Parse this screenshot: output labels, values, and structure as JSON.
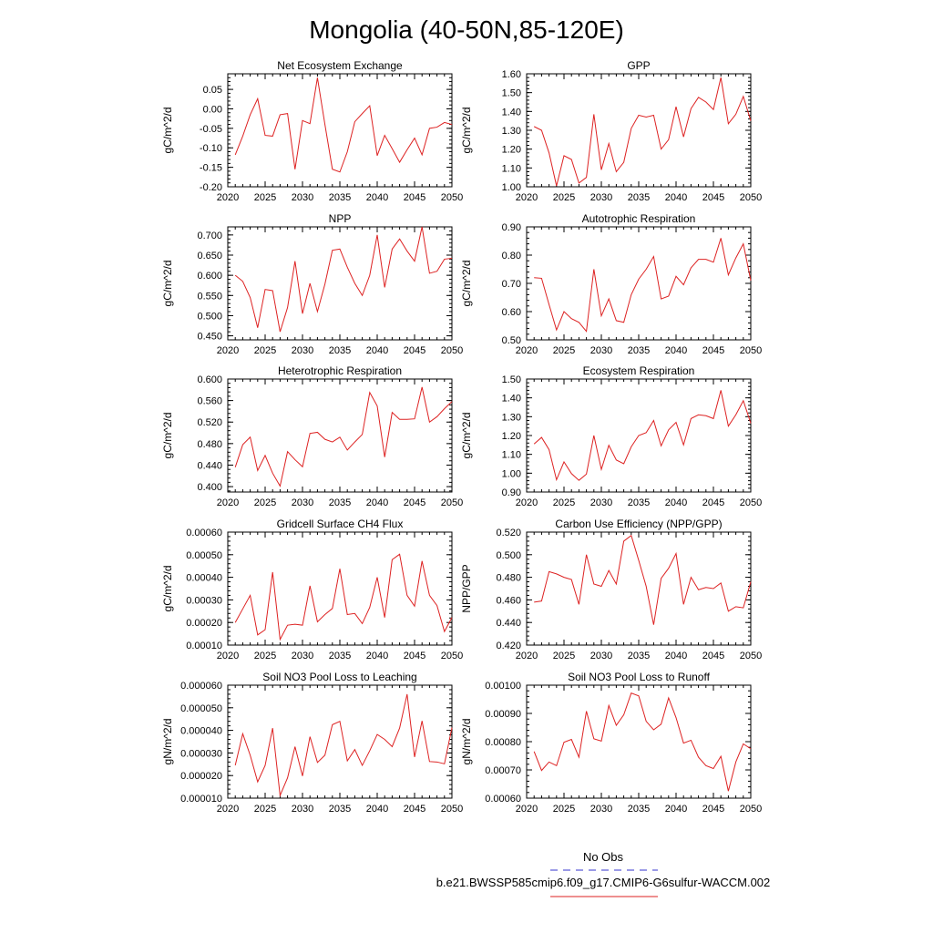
{
  "title": "Mongolia (40-50N,85-120E)",
  "legend": {
    "entries": [
      {
        "label": "No Obs",
        "color": "#3333cc",
        "style": "dashed"
      },
      {
        "label": "b.e21.BWSSP585cmip6.f09_g17.CMIP6-G6sulfur-WACCM.002",
        "color": "#dd2222",
        "style": "solid"
      }
    ]
  },
  "chart_data": [
    {
      "type": "line",
      "title": "Net Ecosystem Exchange",
      "ylabel": "gC/m^2/d",
      "xlim": [
        2020,
        2050
      ],
      "ylim": [
        -0.2,
        0.09
      ],
      "xticks": [
        "2020",
        "2025",
        "2030",
        "2035",
        "2040",
        "2045",
        "2050"
      ],
      "yticks": [
        "-0.20",
        "-0.15",
        "-0.10",
        "-0.05",
        "0.00",
        "0.05"
      ],
      "x": [
        2021,
        2022,
        2023,
        2024,
        2025,
        2026,
        2027,
        2028,
        2029,
        2030,
        2031,
        2032,
        2033,
        2034,
        2035,
        2036,
        2037,
        2038,
        2039,
        2040,
        2041,
        2042,
        2043,
        2044,
        2045,
        2046,
        2047,
        2048,
        2049,
        2050
      ],
      "series": [
        {
          "values": [
            -0.118,
            -0.07,
            -0.015,
            0.026,
            -0.068,
            -0.07,
            -0.015,
            -0.012,
            -0.155,
            -0.03,
            -0.038,
            0.08,
            -0.04,
            -0.155,
            -0.162,
            -0.11,
            -0.033,
            -0.012,
            0.008,
            -0.12,
            -0.068,
            -0.102,
            -0.137,
            -0.105,
            -0.075,
            -0.118,
            -0.05,
            -0.047,
            -0.035,
            -0.04
          ],
          "color": "#dd2222"
        }
      ]
    },
    {
      "type": "line",
      "title": "GPP",
      "ylabel": "gC/m^2/d",
      "xlim": [
        2020,
        2050
      ],
      "ylim": [
        1.0,
        1.6
      ],
      "xticks": [
        "2020",
        "2025",
        "2030",
        "2035",
        "2040",
        "2045",
        "2050"
      ],
      "yticks": [
        "1.00",
        "1.10",
        "1.20",
        "1.30",
        "1.40",
        "1.50",
        "1.60"
      ],
      "x": [
        2021,
        2022,
        2023,
        2024,
        2025,
        2026,
        2027,
        2028,
        2029,
        2030,
        2031,
        2032,
        2033,
        2034,
        2035,
        2036,
        2037,
        2038,
        2039,
        2040,
        2041,
        2042,
        2043,
        2044,
        2045,
        2046,
        2047,
        2048,
        2049,
        2050
      ],
      "series": [
        {
          "values": [
            1.32,
            1.3,
            1.18,
            1.005,
            1.165,
            1.145,
            1.02,
            1.05,
            1.385,
            1.09,
            1.23,
            1.08,
            1.13,
            1.31,
            1.38,
            1.37,
            1.38,
            1.2,
            1.25,
            1.425,
            1.265,
            1.415,
            1.475,
            1.45,
            1.41,
            1.58,
            1.335,
            1.385,
            1.48,
            1.35
          ],
          "color": "#dd2222"
        }
      ]
    },
    {
      "type": "line",
      "title": "NPP",
      "ylabel": "gC/m^2/d",
      "xlim": [
        2020,
        2050
      ],
      "ylim": [
        0.44,
        0.72
      ],
      "xticks": [
        "2020",
        "2025",
        "2030",
        "2035",
        "2040",
        "2045",
        "2050"
      ],
      "yticks": [
        "0.450",
        "0.500",
        "0.550",
        "0.600",
        "0.650",
        "0.700"
      ],
      "x": [
        2021,
        2022,
        2023,
        2024,
        2025,
        2026,
        2027,
        2028,
        2029,
        2030,
        2031,
        2032,
        2033,
        2034,
        2035,
        2036,
        2037,
        2038,
        2039,
        2040,
        2041,
        2042,
        2043,
        2044,
        2045,
        2046,
        2047,
        2048,
        2049,
        2050
      ],
      "series": [
        {
          "values": [
            0.6,
            0.585,
            0.545,
            0.47,
            0.565,
            0.562,
            0.46,
            0.52,
            0.635,
            0.505,
            0.58,
            0.51,
            0.578,
            0.662,
            0.665,
            0.62,
            0.58,
            0.55,
            0.6,
            0.7,
            0.57,
            0.665,
            0.69,
            0.66,
            0.635,
            0.72,
            0.605,
            0.61,
            0.64,
            0.642
          ],
          "color": "#dd2222"
        }
      ]
    },
    {
      "type": "line",
      "title": "Autotrophic Respiration",
      "ylabel": "gC/m^2/d",
      "xlim": [
        2020,
        2050
      ],
      "ylim": [
        0.5,
        0.9
      ],
      "xticks": [
        "2020",
        "2025",
        "2030",
        "2035",
        "2040",
        "2045",
        "2050"
      ],
      "yticks": [
        "0.50",
        "0.60",
        "0.70",
        "0.80",
        "0.90"
      ],
      "x": [
        2021,
        2022,
        2023,
        2024,
        2025,
        2026,
        2027,
        2028,
        2029,
        2030,
        2031,
        2032,
        2033,
        2034,
        2035,
        2036,
        2037,
        2038,
        2039,
        2040,
        2041,
        2042,
        2043,
        2044,
        2045,
        2046,
        2047,
        2048,
        2049,
        2050
      ],
      "series": [
        {
          "values": [
            0.72,
            0.718,
            0.625,
            0.535,
            0.6,
            0.575,
            0.562,
            0.53,
            0.75,
            0.585,
            0.645,
            0.568,
            0.562,
            0.66,
            0.715,
            0.75,
            0.795,
            0.645,
            0.655,
            0.725,
            0.695,
            0.755,
            0.785,
            0.785,
            0.775,
            0.86,
            0.73,
            0.79,
            0.84,
            0.71
          ],
          "color": "#dd2222"
        }
      ]
    },
    {
      "type": "line",
      "title": "Heterotrophic Respiration",
      "ylabel": "gC/m^2/d",
      "xlim": [
        2020,
        2050
      ],
      "ylim": [
        0.39,
        0.6
      ],
      "xticks": [
        "2020",
        "2025",
        "2030",
        "2035",
        "2040",
        "2045",
        "2050"
      ],
      "yticks": [
        "0.400",
        "0.440",
        "0.480",
        "0.520",
        "0.560",
        "0.600"
      ],
      "x": [
        2021,
        2022,
        2023,
        2024,
        2025,
        2026,
        2027,
        2028,
        2029,
        2030,
        2031,
        2032,
        2033,
        2034,
        2035,
        2036,
        2037,
        2038,
        2039,
        2040,
        2041,
        2042,
        2043,
        2044,
        2045,
        2046,
        2047,
        2048,
        2049,
        2050
      ],
      "series": [
        {
          "values": [
            0.436,
            0.478,
            0.492,
            0.43,
            0.458,
            0.425,
            0.401,
            0.465,
            0.45,
            0.437,
            0.499,
            0.501,
            0.488,
            0.483,
            0.492,
            0.468,
            0.483,
            0.497,
            0.575,
            0.55,
            0.455,
            0.538,
            0.525,
            0.525,
            0.526,
            0.585,
            0.52,
            0.53,
            0.545,
            0.558
          ],
          "color": "#dd2222"
        }
      ]
    },
    {
      "type": "line",
      "title": "Ecosystem Respiration",
      "ylabel": "gC/m^2/d",
      "xlim": [
        2020,
        2050
      ],
      "ylim": [
        0.9,
        1.5
      ],
      "xticks": [
        "2020",
        "2025",
        "2030",
        "2035",
        "2040",
        "2045",
        "2050"
      ],
      "yticks": [
        "0.90",
        "1.00",
        "1.10",
        "1.20",
        "1.30",
        "1.40",
        "1.50"
      ],
      "x": [
        2021,
        2022,
        2023,
        2024,
        2025,
        2026,
        2027,
        2028,
        2029,
        2030,
        2031,
        2032,
        2033,
        2034,
        2035,
        2036,
        2037,
        2038,
        2039,
        2040,
        2041,
        2042,
        2043,
        2044,
        2045,
        2046,
        2047,
        2048,
        2049,
        2050
      ],
      "series": [
        {
          "values": [
            1.155,
            1.19,
            1.125,
            0.965,
            1.06,
            0.998,
            0.962,
            0.995,
            1.2,
            1.02,
            1.148,
            1.07,
            1.05,
            1.14,
            1.2,
            1.215,
            1.28,
            1.145,
            1.23,
            1.27,
            1.15,
            1.29,
            1.31,
            1.305,
            1.29,
            1.44,
            1.25,
            1.31,
            1.385,
            1.265
          ],
          "color": "#dd2222"
        }
      ]
    },
    {
      "type": "line",
      "title": "Gridcell Surface CH4 Flux",
      "ylabel": "gC/m^2/d",
      "xlim": [
        2020,
        2050
      ],
      "ylim": [
        0.0001,
        0.0006
      ],
      "xticks": [
        "2020",
        "2025",
        "2030",
        "2035",
        "2040",
        "2045",
        "2050"
      ],
      "yticks": [
        "0.00010",
        "0.00020",
        "0.00030",
        "0.00040",
        "0.00050",
        "0.00060"
      ],
      "x": [
        2021,
        2022,
        2023,
        2024,
        2025,
        2026,
        2027,
        2028,
        2029,
        2030,
        2031,
        2032,
        2033,
        2034,
        2035,
        2036,
        2037,
        2038,
        2039,
        2040,
        2041,
        2042,
        2043,
        2044,
        2045,
        2046,
        2047,
        2048,
        2049,
        2050
      ],
      "series": [
        {
          "values": [
            0.0002,
            0.00026,
            0.00032,
            0.000145,
            0.000168,
            0.000423,
            0.000125,
            0.000188,
            0.000192,
            0.000188,
            0.000362,
            0.000203,
            0.000235,
            0.000262,
            0.000438,
            0.000235,
            0.00024,
            0.000195,
            0.000267,
            0.0004,
            0.000222,
            0.000478,
            0.000502,
            0.00032,
            0.000272,
            0.000472,
            0.00032,
            0.000275,
            0.00016,
            0.000222
          ],
          "color": "#dd2222"
        }
      ]
    },
    {
      "type": "line",
      "title": "Carbon Use Efficiency (NPP/GPP)",
      "ylabel": "NPP/GPP",
      "xlim": [
        2020,
        2050
      ],
      "ylim": [
        0.42,
        0.52
      ],
      "xticks": [
        "2020",
        "2025",
        "2030",
        "2035",
        "2040",
        "2045",
        "2050"
      ],
      "yticks": [
        "0.420",
        "0.440",
        "0.460",
        "0.480",
        "0.500",
        "0.520"
      ],
      "x": [
        2021,
        2022,
        2023,
        2024,
        2025,
        2026,
        2027,
        2028,
        2029,
        2030,
        2031,
        2032,
        2033,
        2034,
        2035,
        2036,
        2037,
        2038,
        2039,
        2040,
        2041,
        2042,
        2043,
        2044,
        2045,
        2046,
        2047,
        2048,
        2049,
        2050
      ],
      "series": [
        {
          "values": [
            0.458,
            0.459,
            0.485,
            0.483,
            0.48,
            0.478,
            0.456,
            0.5,
            0.474,
            0.472,
            0.486,
            0.474,
            0.512,
            0.517,
            0.495,
            0.472,
            0.438,
            0.479,
            0.488,
            0.501,
            0.456,
            0.48,
            0.469,
            0.471,
            0.47,
            0.475,
            0.45,
            0.454,
            0.453,
            0.476
          ],
          "color": "#dd2222"
        }
      ]
    },
    {
      "type": "line",
      "title": "Soil NO3 Pool Loss to Leaching",
      "ylabel": "gN/m^2/d",
      "xlim": [
        2020,
        2050
      ],
      "ylim": [
        1e-05,
        6e-05
      ],
      "xticks": [
        "2020",
        "2025",
        "2030",
        "2035",
        "2040",
        "2045",
        "2050"
      ],
      "yticks": [
        "0.000010",
        "0.000020",
        "0.000030",
        "0.000040",
        "0.000050",
        "0.000060"
      ],
      "x": [
        2021,
        2022,
        2023,
        2024,
        2025,
        2026,
        2027,
        2028,
        2029,
        2030,
        2031,
        2032,
        2033,
        2034,
        2035,
        2036,
        2037,
        2038,
        2039,
        2040,
        2041,
        2042,
        2043,
        2044,
        2045,
        2046,
        2047,
        2048,
        2049,
        2050
      ],
      "series": [
        {
          "values": [
            2.45e-05,
            3.85e-05,
            2.9e-05,
            1.72e-05,
            2.45e-05,
            4.1e-05,
            1.12e-05,
            1.9e-05,
            3.28e-05,
            1.98e-05,
            3.72e-05,
            2.58e-05,
            2.9e-05,
            4.25e-05,
            4.4e-05,
            2.65e-05,
            3.15e-05,
            2.45e-05,
            3.1e-05,
            3.82e-05,
            3.6e-05,
            3.28e-05,
            4.1e-05,
            5.6e-05,
            2.82e-05,
            4.42e-05,
            2.62e-05,
            2.6e-05,
            2.52e-05,
            4.12e-05
          ],
          "color": "#dd2222"
        }
      ]
    },
    {
      "type": "line",
      "title": "Soil NO3 Pool Loss to Runoff",
      "ylabel": "gN/m^2/d",
      "xlim": [
        2020,
        2050
      ],
      "ylim": [
        0.0006,
        0.001
      ],
      "xticks": [
        "2020",
        "2025",
        "2030",
        "2035",
        "2040",
        "2045",
        "2050"
      ],
      "yticks": [
        "0.00060",
        "0.00070",
        "0.00080",
        "0.00090",
        "0.00100"
      ],
      "x": [
        2021,
        2022,
        2023,
        2024,
        2025,
        2026,
        2027,
        2028,
        2029,
        2030,
        2031,
        2032,
        2033,
        2034,
        2035,
        2036,
        2037,
        2038,
        2039,
        2040,
        2041,
        2042,
        2043,
        2044,
        2045,
        2046,
        2047,
        2048,
        2049,
        2050
      ],
      "series": [
        {
          "values": [
            0.000765,
            0.000698,
            0.000728,
            0.000715,
            0.000798,
            0.000808,
            0.000745,
            0.000908,
            0.00081,
            0.000802,
            0.000928,
            0.000858,
            0.000895,
            0.000972,
            0.000962,
            0.000872,
            0.000842,
            0.000862,
            0.000955,
            0.000885,
            0.000795,
            0.000805,
            0.000745,
            0.000715,
            0.000705,
            0.000748,
            0.000625,
            0.000728,
            0.000792,
            0.000775
          ],
          "color": "#dd2222"
        }
      ]
    }
  ]
}
